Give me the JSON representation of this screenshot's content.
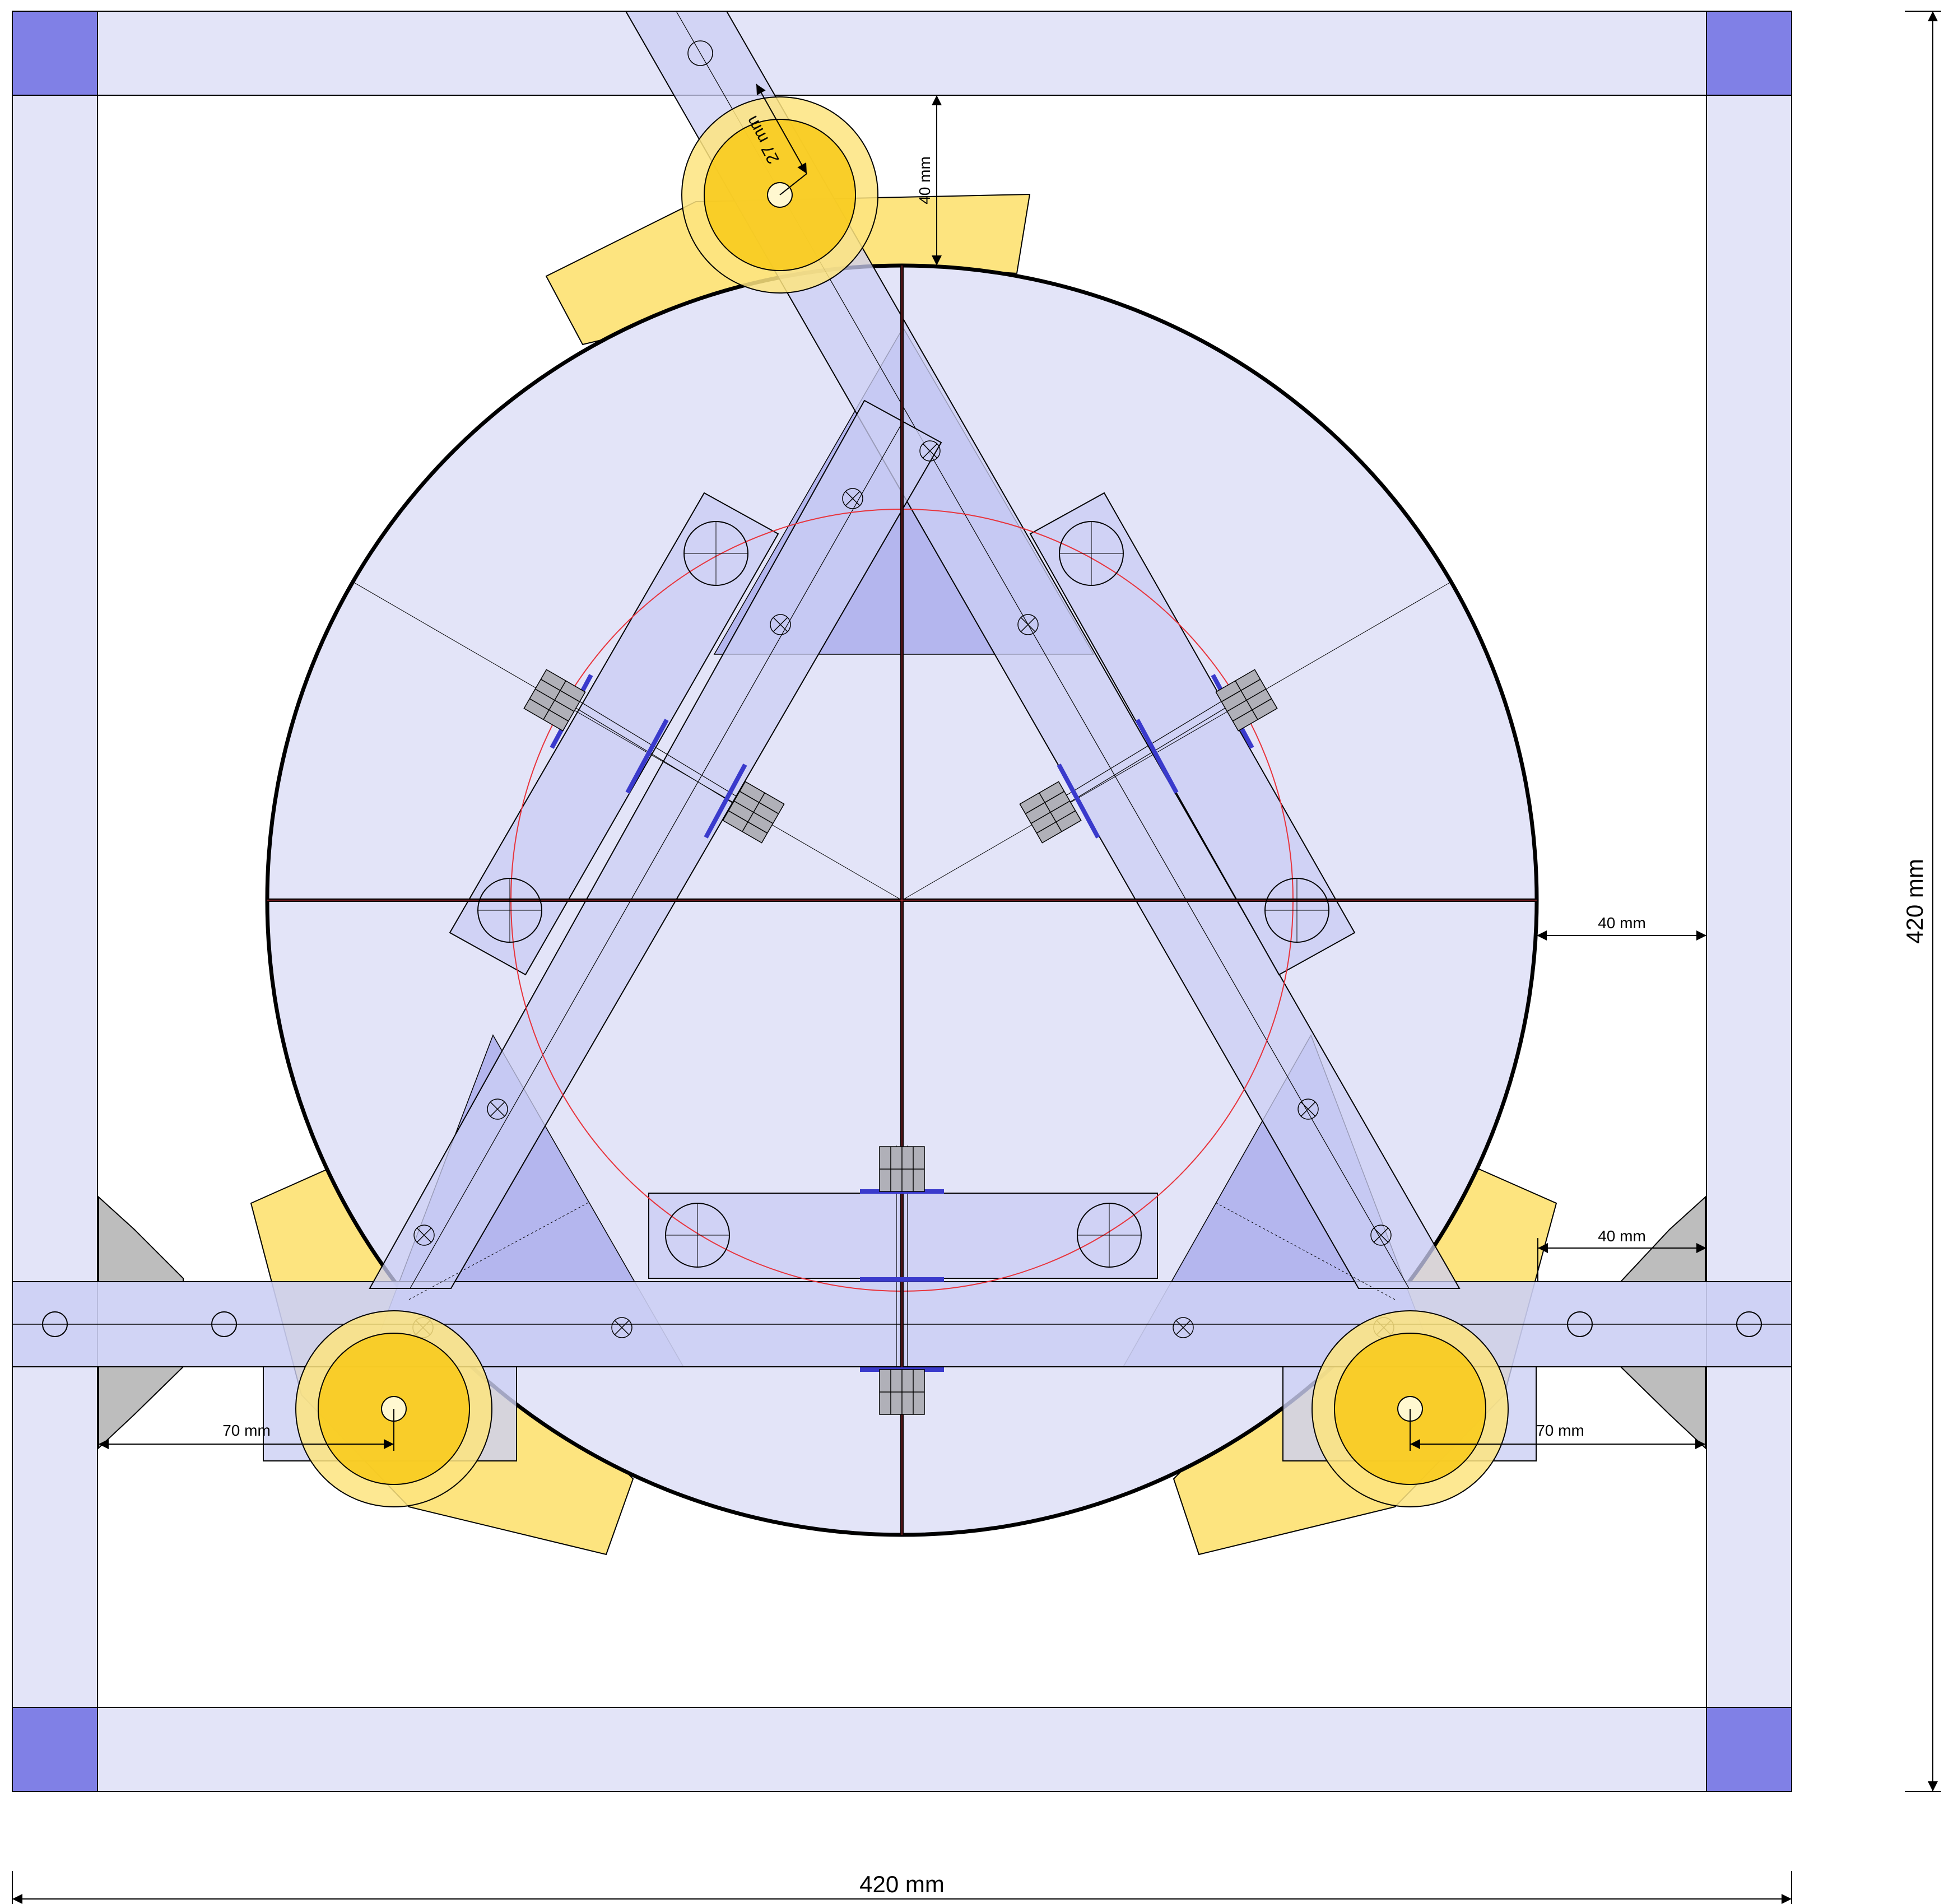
{
  "colors": {
    "frame_fill": "#e3e4f8",
    "frame_corner": "#8080e6",
    "disc_fill": "#e3e4f8",
    "arm_fill": "#cccff4",
    "arm_dark": "#b4b6ee",
    "bracket_yellow": "#fde47f",
    "wheel_yellow": "#f8cb1e",
    "bolt_grey": "#b0b0b8",
    "gusset_grey": "#bdbdbd",
    "red_circle": "#e8343c",
    "outline": "#000000"
  },
  "dimensions": {
    "overall_width": "420 mm",
    "overall_height": "420 mm",
    "top_gap": "40 mm",
    "right_gap": "40 mm",
    "right_lower_gap": "40 mm",
    "left_wheel_offset": "70 mm",
    "right_wheel_offset": "70 mm",
    "wheel_radius": "27 mm"
  }
}
